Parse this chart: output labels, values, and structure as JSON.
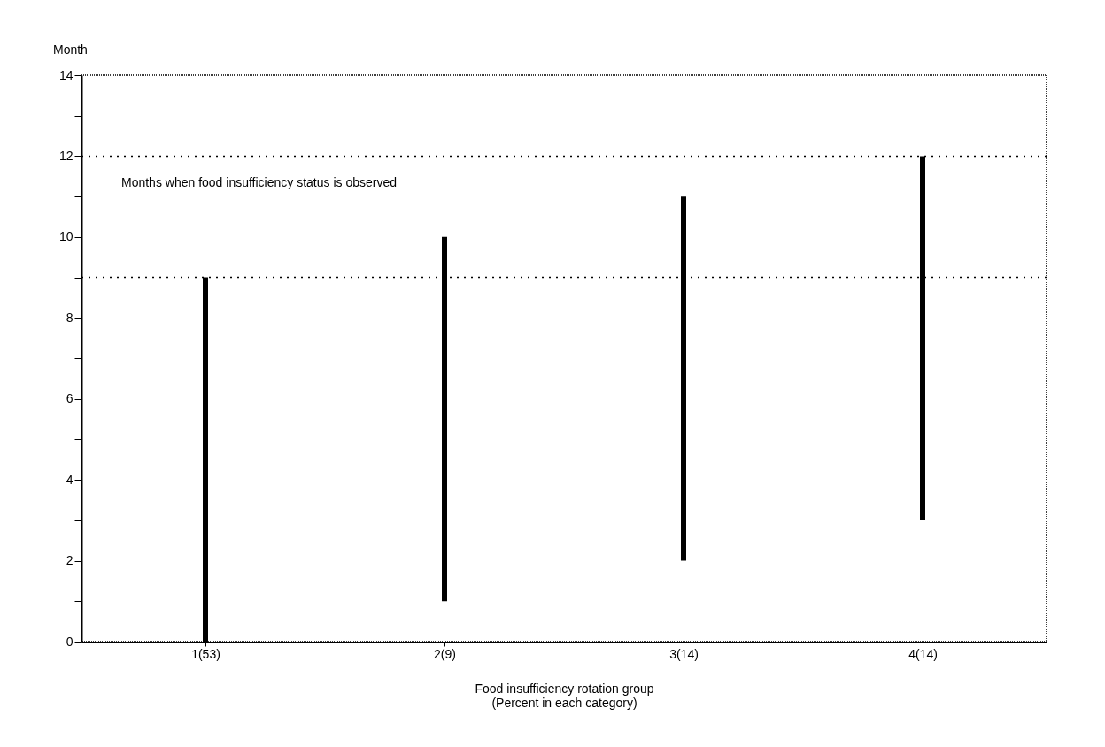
{
  "chart_data": {
    "type": "bar",
    "ylabel": "Month",
    "xlabel": [
      "Food insufficiency rotation group",
      "(Percent in each category)"
    ],
    "categories": [
      "1(53)",
      "2(9)",
      "3(14)",
      "4(14)"
    ],
    "base": [
      0,
      1,
      2,
      3
    ],
    "values": [
      9,
      9,
      9,
      9
    ],
    "color": "#000000",
    "ylim": [
      0,
      14
    ],
    "yticks": [
      0,
      {
        "value": 1,
        "label": null
      },
      2,
      {
        "value": 3,
        "label": null
      },
      4,
      {
        "value": 5,
        "label": null
      },
      6,
      {
        "value": 7,
        "label": null
      },
      8,
      {
        "value": 9,
        "label": null
      },
      10,
      {
        "value": 11,
        "label": null
      },
      12,
      {
        "value": 13,
        "label": null
      },
      14
    ],
    "ref_lines": [
      {
        "axis": "y",
        "value": 12,
        "line_style": "dotted",
        "color": "#000000"
      },
      {
        "axis": "y",
        "value": 9,
        "line_style": "dotted",
        "color": "#000000"
      }
    ],
    "annotations": [
      "Months when food insufficiency status is observed"
    ],
    "grid": false
  }
}
